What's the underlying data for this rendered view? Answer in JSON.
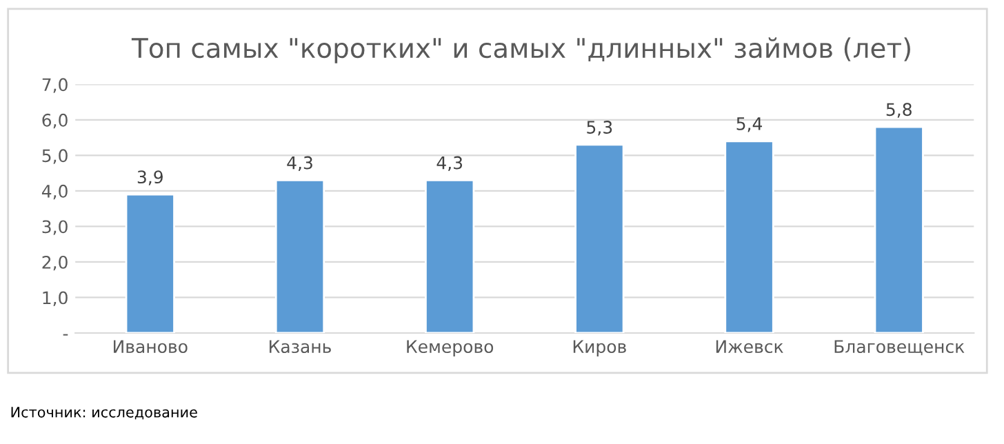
{
  "chart_data": {
    "type": "bar",
    "title": "Топ самых \"коротких\" и самых \"длинных\" займов (лет)",
    "categories": [
      "Иваново",
      "Казань",
      "Кемерово",
      "Киров",
      "Ижевск",
      "Благовещенск"
    ],
    "values": [
      3.9,
      4.3,
      4.3,
      5.3,
      5.4,
      5.8
    ],
    "value_labels": [
      "3,9",
      "4,3",
      "4,3",
      "5,3",
      "5,4",
      "5,8"
    ],
    "color": "#5b9bd5",
    "ylim": [
      0,
      7
    ],
    "yticks": [
      {
        "value": 0,
        "label": "-"
      },
      {
        "value": 1,
        "label": "1,0"
      },
      {
        "value": 2,
        "label": "2,0"
      },
      {
        "value": 3,
        "label": "3,0"
      },
      {
        "value": 4,
        "label": "4,0"
      },
      {
        "value": 5,
        "label": "5,0"
      },
      {
        "value": 6,
        "label": "6,0"
      },
      {
        "value": 7,
        "label": "7,0"
      }
    ],
    "grid": "y",
    "annotations": [
      "Источник: исследование"
    ]
  }
}
